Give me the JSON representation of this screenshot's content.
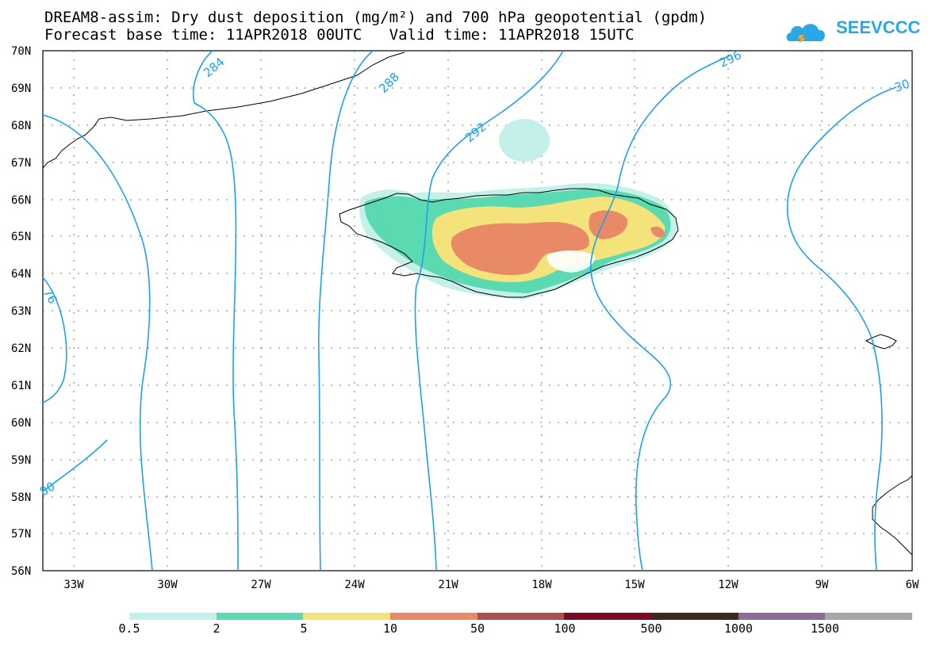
{
  "header": {
    "title_line1": "DREAM8-assim: Dry dust deposition (mg/m²) and 700 hPa geopotential (gpdm)",
    "title_line2": "Forecast base time: 11APR2018 00UTC   Valid time: 11APR2018 15UTC",
    "logo_text": "SEEVCCC"
  },
  "map": {
    "lat_labels": [
      "70N",
      "69N",
      "68N",
      "67N",
      "66N",
      "65N",
      "64N",
      "63N",
      "62N",
      "61N",
      "60N",
      "59N",
      "58N",
      "57N",
      "56N"
    ],
    "lon_labels": [
      "33W",
      "30W",
      "27W",
      "24W",
      "21W",
      "18W",
      "15W",
      "12W",
      "9W",
      "6W"
    ],
    "contour_labels": [
      "284",
      "288",
      "292",
      "296",
      "30",
      "76",
      "80"
    ]
  },
  "legend": {
    "colors": [
      "#c4f0ea",
      "#5bd9b0",
      "#f4e27a",
      "#e98a66",
      "#a9514a",
      "#7a0a28",
      "#3d2a1e",
      "#8e6c99",
      "#a6a6a6"
    ],
    "labels": [
      "0.5",
      "2",
      "5",
      "10",
      "50",
      "100",
      "500",
      "1000",
      "1500"
    ]
  }
}
